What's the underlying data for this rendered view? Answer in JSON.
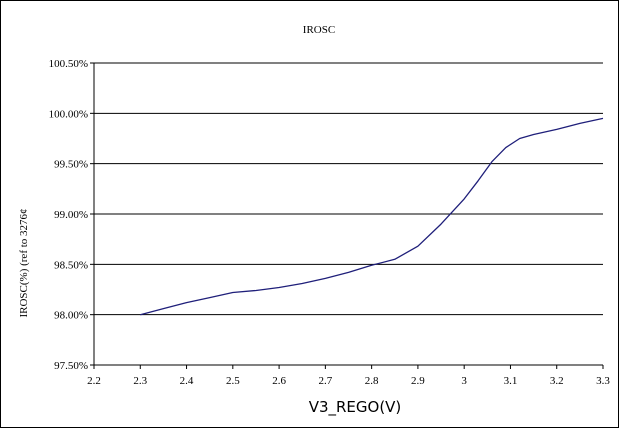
{
  "chart_data": {
    "type": "line",
    "title": "IROSC",
    "xlabel": "V3_REGO(V)",
    "ylabel": "IROSC(%) (ref to 3276¢",
    "xlim": [
      2.2,
      3.3
    ],
    "ylim": [
      97.5,
      100.5
    ],
    "x_ticks": [
      "2.2",
      "2.3",
      "2.4",
      "2.5",
      "2.6",
      "2.7",
      "2.8",
      "2.9",
      "3",
      "3.1",
      "3.2",
      "3.3"
    ],
    "y_ticks": [
      "97.50%",
      "98.00%",
      "98.50%",
      "99.00%",
      "99.50%",
      "100.00%",
      "100.50%"
    ],
    "grid": "horizontal",
    "legend": "none",
    "series": [
      {
        "color": "#1f1f7a",
        "x": [
          2.3,
          2.35,
          2.4,
          2.45,
          2.5,
          2.55,
          2.6,
          2.65,
          2.7,
          2.75,
          2.8,
          2.85,
          2.9,
          2.95,
          3.0,
          3.03,
          3.06,
          3.09,
          3.12,
          3.15,
          3.2,
          3.25,
          3.3
        ],
        "y": [
          98.0,
          98.06,
          98.12,
          98.17,
          98.22,
          98.24,
          98.27,
          98.31,
          98.36,
          98.42,
          98.49,
          98.55,
          98.68,
          98.9,
          99.15,
          99.33,
          99.52,
          99.66,
          99.75,
          99.79,
          99.84,
          99.9,
          99.95
        ]
      }
    ]
  }
}
